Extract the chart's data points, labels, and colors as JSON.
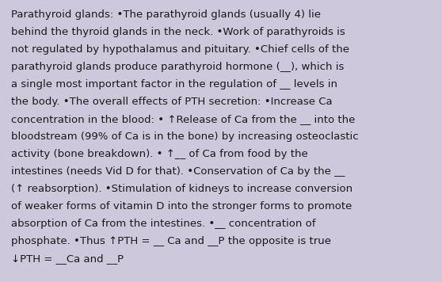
{
  "background_color": "#cdc8dc",
  "text_color": "#1a1a1a",
  "font_size": 9.5,
  "font_family": "DejaVu Sans",
  "figsize": [
    5.58,
    3.56
  ],
  "dpi": 100,
  "lines": [
    "Parathyroid glands: •The parathyroid glands (usually 4) lie",
    "behind the thyroid glands in the neck. •Work of parathyroids is",
    "not regulated by hypothalamus and pituitary. •Chief cells of the",
    "parathyroid glands produce parathyroid hormone (__), which is",
    "a single most important factor in the regulation of __ levels in",
    "the body. •The overall effects of PTH secretion: •Increase Ca",
    "concentration in the blood: • ↑Release of Ca from the __ into the",
    "bloodstream (99% of Ca is in the bone) by increasing osteoclastic",
    "activity (bone breakdown). • ↑__ of Ca from food by the",
    "intestines (needs Vid D for that). •Conservation of Ca by the __",
    "(↑ reabsorption). •Stimulation of kidneys to increase conversion",
    "of weaker forms of vitamin D into the stronger forms to promote",
    "absorption of Ca from the intestines. •__ concentration of",
    "phosphate. •Thus ↑PTH = __ Ca and __P the opposite is true",
    "↓PTH = __Ca and __P"
  ]
}
